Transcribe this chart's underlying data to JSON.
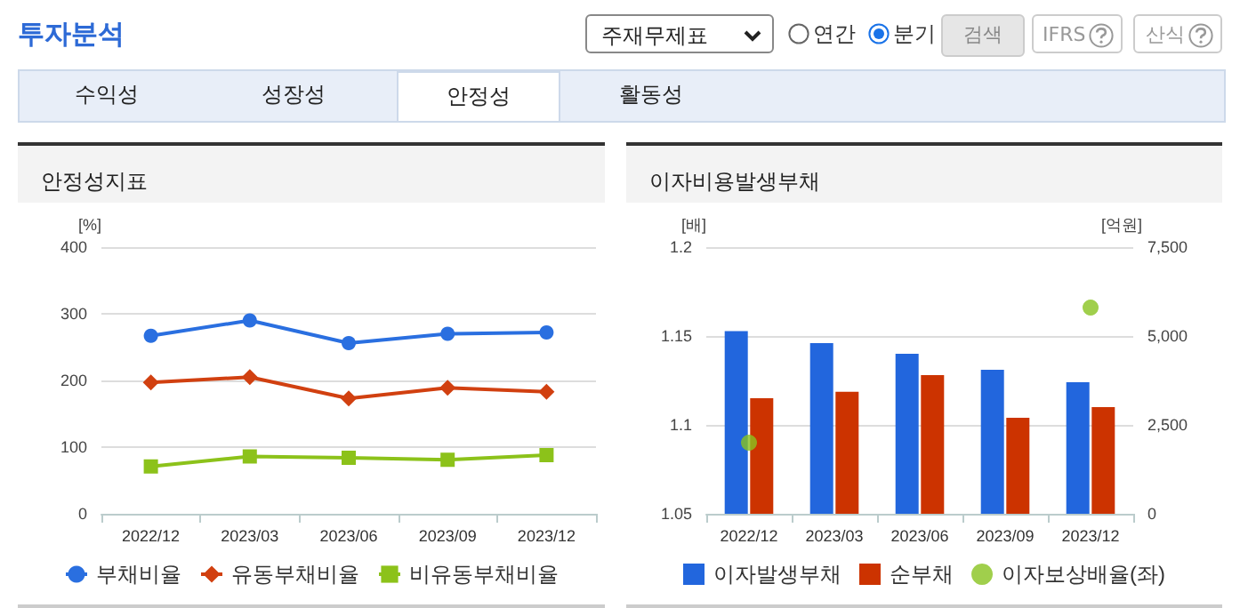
{
  "chart_data": [
    {
      "type": "line",
      "title": "안정성지표",
      "ylabel": "[%]",
      "categories": [
        "2022/12",
        "2023/03",
        "2023/06",
        "2023/09",
        "2023/12"
      ],
      "series": [
        {
          "name": "부채비율",
          "color": "#2a6fe0",
          "marker": "circle",
          "values": [
            267,
            290,
            256,
            270,
            272
          ]
        },
        {
          "name": "유동부채비율",
          "color": "#d14010",
          "marker": "diamond",
          "values": [
            197,
            205,
            173,
            189,
            183
          ]
        },
        {
          "name": "비유동부채비율",
          "color": "#8cc21a",
          "marker": "square",
          "values": [
            71,
            86,
            84,
            81,
            88
          ]
        }
      ],
      "ylim": [
        0,
        400
      ],
      "yticks": [
        0,
        100,
        200,
        300,
        400
      ],
      "grid": "y",
      "legend": "bottom",
      "annotations": [
        "투자분석",
        "주재무제표",
        "연간",
        "분기",
        "검색",
        "IFRS",
        "산식",
        "수익성",
        "성장성",
        "안정성",
        "활동성"
      ]
    },
    {
      "type": "bar",
      "title": "이자비용발생부채",
      "ylabel": "[배]",
      "y2label": "[억원]",
      "categories": [
        "2022/12",
        "2023/03",
        "2023/06",
        "2023/09",
        "2023/12"
      ],
      "series": [
        {
          "name": "이자발생부채",
          "color": "#2266dd",
          "axis": "y2",
          "values": [
            5140,
            4800,
            4500,
            4050,
            3700
          ]
        },
        {
          "name": "순부채",
          "color": "#cc3300",
          "axis": "y2",
          "values": [
            3250,
            3430,
            3900,
            2700,
            3000
          ]
        },
        {
          "name": "이자보상배율(좌)",
          "color": "#88c31f",
          "type": "scatter",
          "marker": "circle",
          "values": [
            1.09,
            null,
            null,
            null,
            1.166
          ]
        }
      ],
      "ylim": [
        1.05,
        1.2
      ],
      "yticks": [
        1.05,
        1.1,
        1.15,
        1.2
      ],
      "y2lim": [
        0,
        7500
      ],
      "y2ticks": [
        0,
        {
          "value": 2500,
          "label": "2,500"
        },
        {
          "value": 5000,
          "label": "5,000"
        },
        {
          "value": 7500,
          "label": "7,500"
        }
      ],
      "grid": "y",
      "legend": "bottom"
    }
  ]
}
